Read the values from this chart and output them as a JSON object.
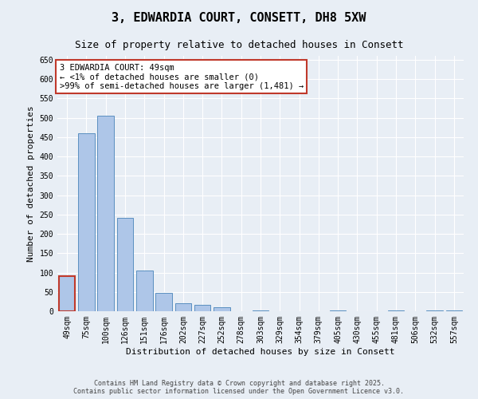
{
  "title": "3, EDWARDIA COURT, CONSETT, DH8 5XW",
  "subtitle": "Size of property relative to detached houses in Consett",
  "xlabel": "Distribution of detached houses by size in Consett",
  "ylabel": "Number of detached properties",
  "categories": [
    "49sqm",
    "75sqm",
    "100sqm",
    "126sqm",
    "151sqm",
    "176sqm",
    "202sqm",
    "227sqm",
    "252sqm",
    "278sqm",
    "303sqm",
    "329sqm",
    "354sqm",
    "379sqm",
    "405sqm",
    "430sqm",
    "455sqm",
    "481sqm",
    "506sqm",
    "532sqm",
    "557sqm"
  ],
  "values": [
    90,
    460,
    505,
    242,
    105,
    48,
    20,
    17,
    11,
    0,
    3,
    0,
    0,
    0,
    2,
    0,
    0,
    3,
    0,
    2,
    3
  ],
  "bar_color": "#aec6e8",
  "bar_edge_color": "#5a8fc0",
  "highlight_bar_index": 0,
  "highlight_bar_edge_color": "#c0392b",
  "annotation_box_text": "3 EDWARDIA COURT: 49sqm\n← <1% of detached houses are smaller (0)\n>99% of semi-detached houses are larger (1,481) →",
  "ylim": [
    0,
    660
  ],
  "yticks": [
    0,
    50,
    100,
    150,
    200,
    250,
    300,
    350,
    400,
    450,
    500,
    550,
    600,
    650
  ],
  "bg_color": "#e8eef5",
  "footer_text": "Contains HM Land Registry data © Crown copyright and database right 2025.\nContains public sector information licensed under the Open Government Licence v3.0.",
  "title_fontsize": 11,
  "subtitle_fontsize": 9,
  "xlabel_fontsize": 8,
  "ylabel_fontsize": 8,
  "tick_fontsize": 7,
  "annotation_fontsize": 7.5,
  "footer_fontsize": 6
}
